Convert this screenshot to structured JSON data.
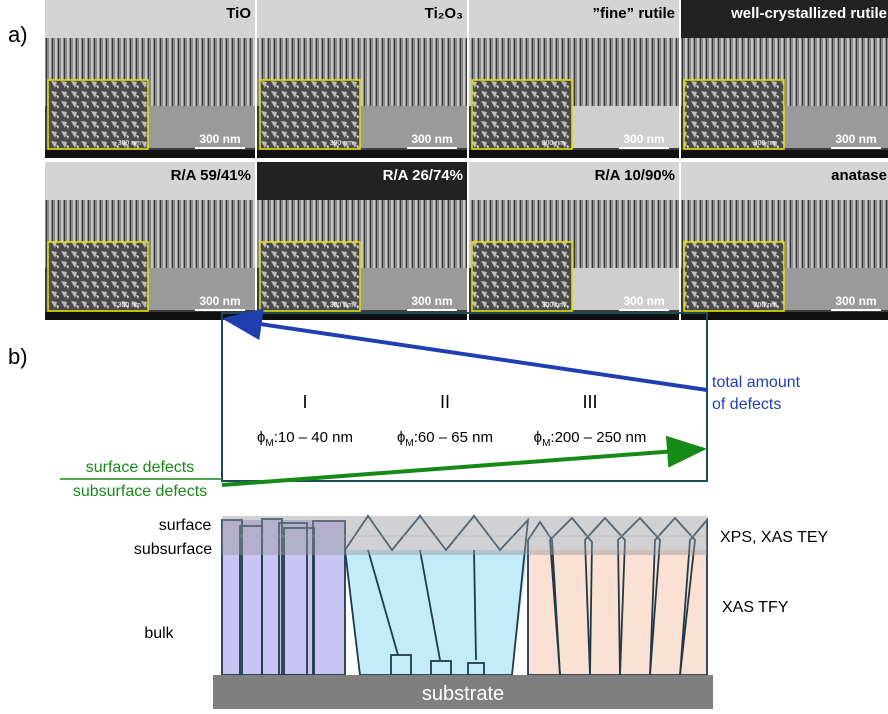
{
  "panel_a": {
    "label": "a)",
    "images": [
      {
        "title": "TiO",
        "scale": "300 nm",
        "inset_scale": "300 nm"
      },
      {
        "title": "Ti₂O₃",
        "scale": "300 nm",
        "inset_scale": "300 nm"
      },
      {
        "title": "”fine” rutile",
        "scale": "300 nm",
        "inset_scale": "300 nm"
      },
      {
        "title": "well-crystallized rutile",
        "scale": "300 nm",
        "inset_scale": "300 nm"
      },
      {
        "title": "R/A 59/41%",
        "scale": "300 nm",
        "inset_scale": "300 nm"
      },
      {
        "title": "R/A 26/74%",
        "scale": "300 nm",
        "inset_scale": "300 nm"
      },
      {
        "title": "R/A 10/90%",
        "scale": "300 nm",
        "inset_scale": "300 nm"
      },
      {
        "title": "anatase",
        "scale": "300 nm",
        "inset_scale": "300 nm"
      }
    ]
  },
  "panel_b": {
    "label": "b)",
    "total_defects": [
      "total amount",
      "of defects"
    ],
    "ratio_numerator": "surface defects",
    "ratio_denominator": "subsurface defects",
    "groups": [
      {
        "numeral": "I",
        "symbol": "ϕ",
        "subscript": "M",
        "range": ":10 – 40 nm"
      },
      {
        "numeral": "II",
        "symbol": "ϕ",
        "subscript": "M",
        "range": ":60 – 65 nm"
      },
      {
        "numeral": "III",
        "symbol": "ϕ",
        "subscript": "M",
        "range": ":200 – 250 nm"
      }
    ],
    "layers": {
      "surface": "surface",
      "subsurface": "subsurface",
      "bulk": "bulk"
    },
    "methods": {
      "surface": "XPS, XAS TEY",
      "bulk": "XAS TFY"
    },
    "substrate": "substrate"
  }
}
